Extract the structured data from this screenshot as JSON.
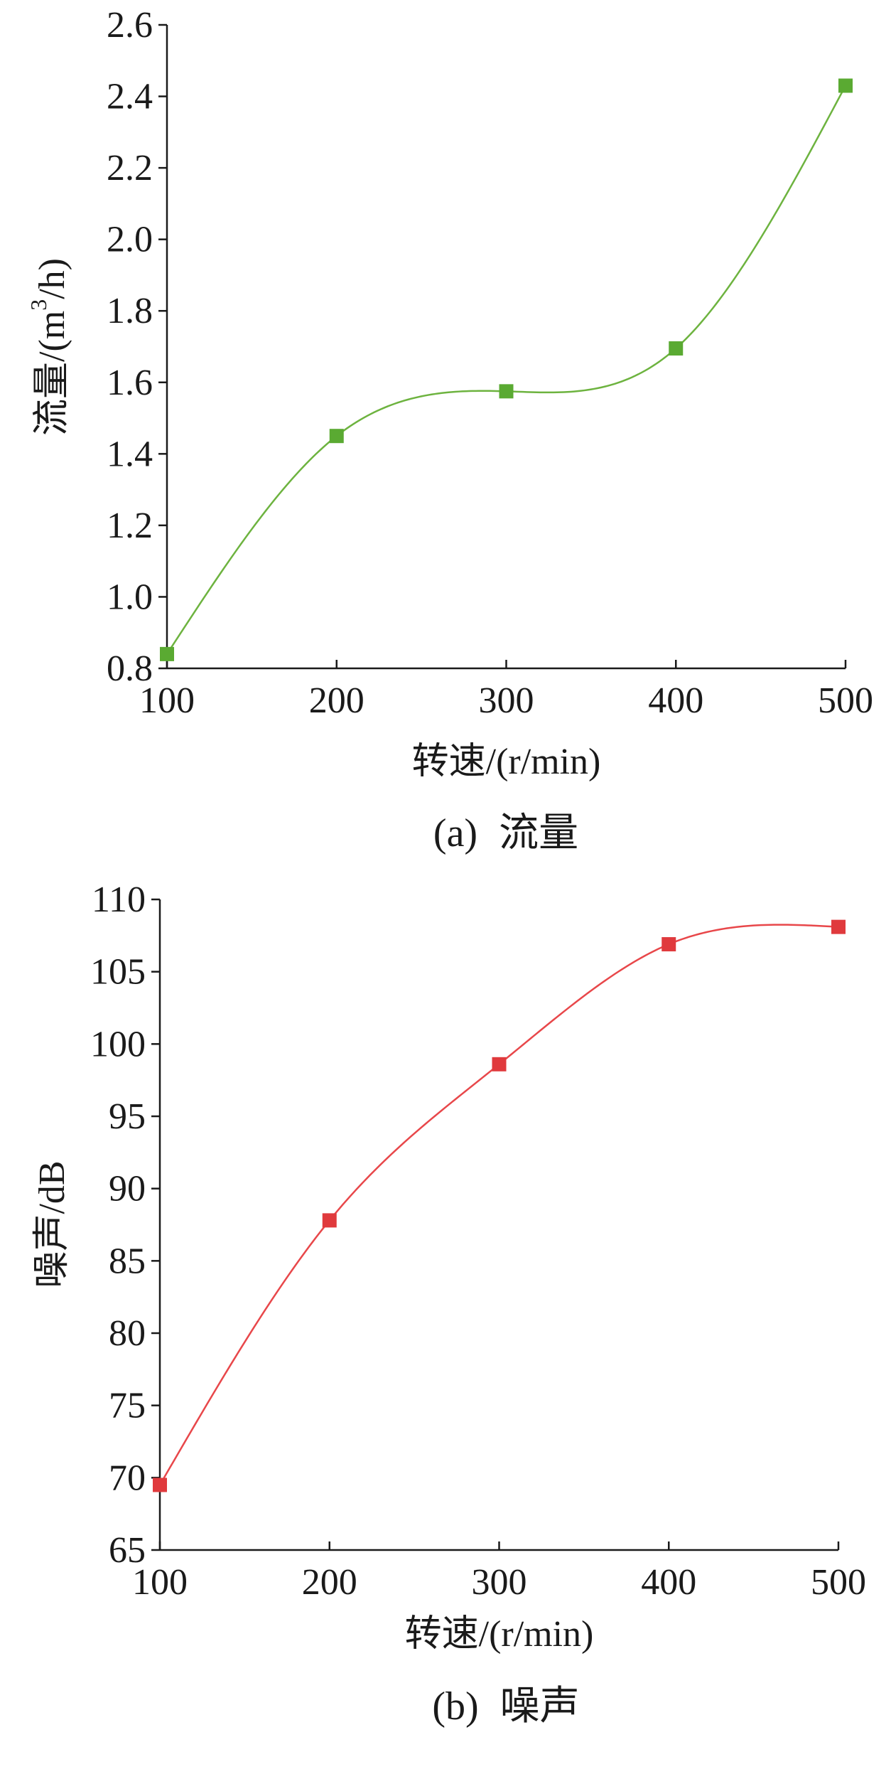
{
  "chart_data": [
    {
      "type": "line",
      "panel_label": "(a)",
      "caption": "流量",
      "xlabel": "转速/(r/min)",
      "ylabel_main": "流量/(m",
      "ylabel_sup": "3",
      "ylabel_tail": "/h)",
      "xlim": [
        100,
        500
      ],
      "ylim": [
        0.8,
        2.6
      ],
      "xticks": [
        100,
        200,
        300,
        400,
        500
      ],
      "xtick_labels": [
        "100",
        "200",
        "300",
        "400",
        "500"
      ],
      "yticks": [
        0.8,
        1.0,
        1.2,
        1.4,
        1.6,
        1.8,
        2.0,
        2.2,
        2.4,
        2.6
      ],
      "ytick_labels": [
        "0.8",
        "1.0",
        "1.2",
        "1.4",
        "1.6",
        "1.8",
        "2.0",
        "2.2",
        "2.4",
        "2.6"
      ],
      "grid": false,
      "legend": "none",
      "smooth": true,
      "color": "#6db33f",
      "marker_color": "#5aaa32",
      "x": [
        100,
        200,
        300,
        400,
        500
      ],
      "y": [
        0.84,
        1.45,
        1.575,
        1.695,
        2.43
      ]
    },
    {
      "type": "line",
      "panel_label": "(b)",
      "caption": "噪声",
      "xlabel": "转速/(r/min)",
      "ylabel_main": "噪声/dB",
      "ylabel_sup": "",
      "ylabel_tail": "",
      "xlim": [
        100,
        500
      ],
      "ylim": [
        65,
        110
      ],
      "xticks": [
        100,
        200,
        300,
        400,
        500
      ],
      "xtick_labels": [
        "100",
        "200",
        "300",
        "400",
        "500"
      ],
      "yticks": [
        65,
        70,
        75,
        80,
        85,
        90,
        95,
        100,
        105,
        110
      ],
      "ytick_labels": [
        "65",
        "70",
        "75",
        "80",
        "85",
        "90",
        "95",
        "100",
        "105",
        "110"
      ],
      "grid": false,
      "legend": "none",
      "smooth": true,
      "color": "#e8474a",
      "marker_color": "#e03a3d",
      "x": [
        100,
        200,
        300,
        400,
        500
      ],
      "y": [
        69.5,
        87.8,
        98.6,
        106.9,
        108.1
      ]
    }
  ]
}
